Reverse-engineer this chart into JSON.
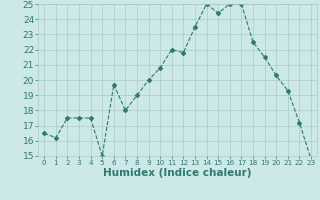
{
  "x": [
    0,
    1,
    2,
    3,
    4,
    5,
    6,
    7,
    8,
    9,
    10,
    11,
    12,
    13,
    14,
    15,
    16,
    17,
    18,
    19,
    20,
    21,
    22,
    23
  ],
  "y": [
    16.5,
    16.2,
    17.5,
    17.5,
    17.5,
    15.0,
    19.7,
    18.0,
    19.0,
    20.0,
    20.8,
    22.0,
    21.8,
    23.5,
    25.0,
    24.4,
    25.0,
    25.0,
    22.5,
    21.5,
    20.3,
    19.3,
    17.2,
    14.8
  ],
  "line_color": "#2d7a6e",
  "marker": "D",
  "marker_size": 2.0,
  "bg_color": "#cce8e8",
  "grid_color": "#aacccc",
  "xlabel": "Humidex (Indice chaleur)",
  "xlim": [
    -0.5,
    23.5
  ],
  "ylim": [
    15,
    25
  ],
  "yticks": [
    15,
    16,
    17,
    18,
    19,
    20,
    21,
    22,
    23,
    24,
    25
  ],
  "xticks": [
    0,
    1,
    2,
    3,
    4,
    5,
    6,
    7,
    8,
    9,
    10,
    11,
    12,
    13,
    14,
    15,
    16,
    17,
    18,
    19,
    20,
    21,
    22,
    23
  ],
  "tick_color": "#2d7a6e",
  "tick_labelsize": 6.5,
  "xlabel_fontsize": 7.5,
  "linewidth": 0.8
}
